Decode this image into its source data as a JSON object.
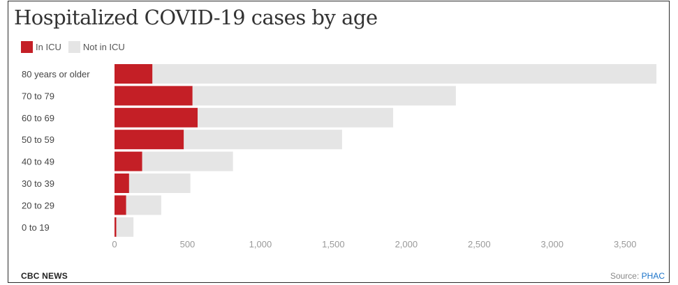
{
  "brand": "CBC NEWS",
  "source": {
    "prefix": "Source:",
    "link_text": "PHAC"
  },
  "chart_data": {
    "type": "bar",
    "orientation": "horizontal",
    "stacked": true,
    "title": "Hospitalized COVID-19 cases by age",
    "categories": [
      "80 years or older",
      "70 to 79",
      "60 to 69",
      "50 to 59",
      "40 to 49",
      "30 to 39",
      "20 to 29",
      "0 to 19"
    ],
    "series": [
      {
        "name": "In ICU",
        "color": "#c41f26",
        "values": [
          260,
          535,
          570,
          475,
          190,
          100,
          80,
          12
        ]
      },
      {
        "name": "Not in ICU",
        "color": "#e5e5e5",
        "values": [
          3455,
          1805,
          1340,
          1085,
          622,
          420,
          240,
          118
        ]
      }
    ],
    "xlim": [
      0,
      3700
    ],
    "xticks": [
      0,
      500,
      1000,
      1500,
      2000,
      2500,
      3000,
      3500
    ],
    "xtick_labels": [
      "0",
      "500",
      "1,000",
      "1,500",
      "2,000",
      "2,500",
      "3,000",
      "3,500"
    ],
    "legend_position": "top-left",
    "grid": false
  }
}
